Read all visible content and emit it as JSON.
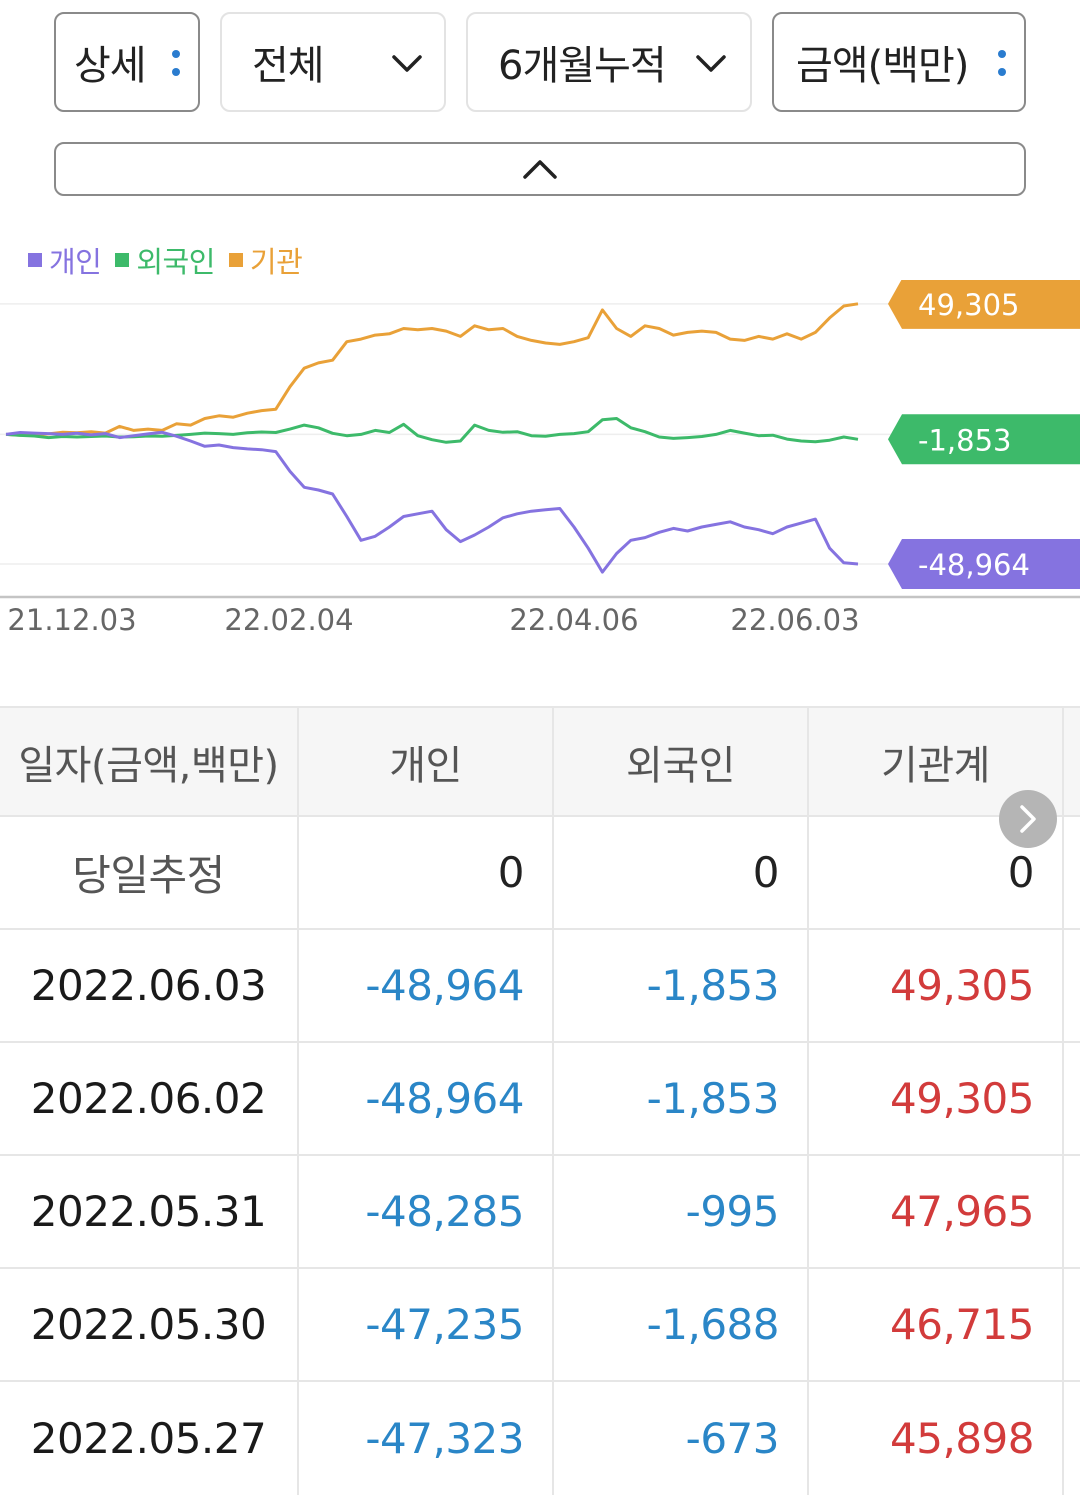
{
  "filters": {
    "detail": "상세",
    "scope": "전체",
    "period": "6개월누적",
    "unit": "금액(백만)"
  },
  "legend": [
    {
      "label": "개인",
      "color": "#8573e0"
    },
    {
      "label": "외국인",
      "color": "#3dba6a"
    },
    {
      "label": "기관",
      "color": "#e9a138"
    }
  ],
  "chart_data": {
    "type": "line",
    "x_tick_labels": [
      "21.12.03",
      "22.02.04",
      "22.04.06",
      "22.06.03"
    ],
    "end_labels": {
      "기관": "49,305",
      "외국인": "-1,853",
      "개인": "-48,964"
    },
    "series": [
      {
        "name": "기관",
        "color": "#e9a138",
        "values": [
          0,
          -300,
          0,
          200,
          800,
          600,
          1000,
          500,
          3000,
          1500,
          2000,
          1500,
          4000,
          3500,
          6000,
          7000,
          6500,
          8000,
          9000,
          9500,
          18000,
          25000,
          27000,
          28000,
          35000,
          36000,
          37500,
          38000,
          40000,
          39500,
          40000,
          39000,
          37000,
          41000,
          39500,
          40000,
          37000,
          35500,
          34500,
          34000,
          35000,
          36500,
          47000,
          40000,
          37000,
          41000,
          40000,
          37500,
          38500,
          39000,
          38500,
          36000,
          35500,
          37000,
          36000,
          38000,
          36000,
          38500,
          44000,
          48500,
          49305
        ]
      },
      {
        "name": "외국인",
        "color": "#3dba6a",
        "values": [
          0,
          -400,
          -600,
          -1200,
          -800,
          -1000,
          -800,
          -600,
          -1000,
          -900,
          -600,
          -700,
          -400,
          0,
          500,
          300,
          0,
          600,
          900,
          700,
          2000,
          3500,
          2500,
          400,
          -500,
          0,
          1500,
          700,
          3800,
          -500,
          -2000,
          -3000,
          -2500,
          3500,
          1500,
          800,
          1000,
          -500,
          -700,
          0,
          300,
          1000,
          5500,
          6000,
          2500,
          1000,
          -1000,
          -1500,
          -1200,
          -800,
          0,
          1500,
          500,
          -500,
          -300,
          -1800,
          -2500,
          -2800,
          -2200,
          -1000,
          -1853
        ]
      },
      {
        "name": "개인",
        "color": "#8573e0",
        "values": [
          0,
          700,
          500,
          300,
          0,
          400,
          -200,
          300,
          -1200,
          -500,
          200,
          800,
          -700,
          -2500,
          -4500,
          -4000,
          -5000,
          -5500,
          -5800,
          -6500,
          -14000,
          -20000,
          -21000,
          -22500,
          -31000,
          -40000,
          -38500,
          -35000,
          -31000,
          -30000,
          -29000,
          -36000,
          -40500,
          -38000,
          -35000,
          -31500,
          -30000,
          -29000,
          -28500,
          -28000,
          -35000,
          -43000,
          -52000,
          -45000,
          -40000,
          -39000,
          -37000,
          -35500,
          -36500,
          -35000,
          -34000,
          -33000,
          -35000,
          -36000,
          -37500,
          -35000,
          -33500,
          -32000,
          -43000,
          -48500,
          -48964
        ]
      }
    ]
  },
  "table": {
    "headers": [
      "일자(금액,백만)",
      "개인",
      "외국인",
      "기관계"
    ],
    "rows": [
      {
        "date": "당일추정",
        "individual": "0",
        "foreign": "0",
        "institution": "0"
      },
      {
        "date": "2022.06.03",
        "individual": "-48,964",
        "foreign": "-1,853",
        "institution": "49,305"
      },
      {
        "date": "2022.06.02",
        "individual": "-48,964",
        "foreign": "-1,853",
        "institution": "49,305"
      },
      {
        "date": "2022.05.31",
        "individual": "-48,285",
        "foreign": "-995",
        "institution": "47,965"
      },
      {
        "date": "2022.05.30",
        "individual": "-47,235",
        "foreign": "-1,688",
        "institution": "46,715"
      },
      {
        "date": "2022.05.27",
        "individual": "-47,323",
        "foreign": "-673",
        "institution": "45,898"
      }
    ]
  }
}
